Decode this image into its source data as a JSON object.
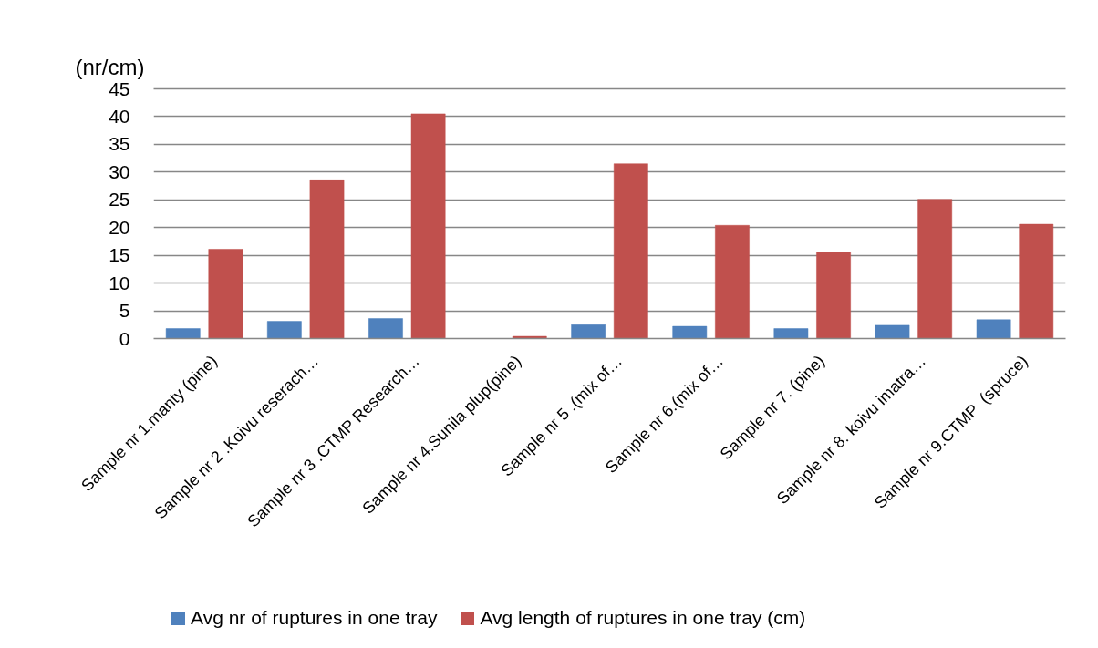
{
  "chart_data": {
    "type": "bar",
    "ylabel": "(nr/cm)",
    "categories": [
      "Sample nr 1.manty (pine)",
      "Sample nr 2 .Koivu reserach…",
      "Sample nr 3 .CTMP Research…",
      "Sample nr 4.Sunila plup(pine)",
      "Sample nr 5 .(mix of…",
      "Sample nr 6.(mix of…",
      "Sample nr 7. (pine)",
      "Sample nr 8. koivu imatra…",
      "Sample nr 9.CTMP  (spruce)"
    ],
    "series": [
      {
        "name": "Avg nr of ruptures in one tray",
        "color": "#4f81bd",
        "values": [
          1.8,
          3.1,
          3.6,
          0,
          2.5,
          2.2,
          1.8,
          2.4,
          3.4
        ]
      },
      {
        "name": "Avg length of ruptures in one tray (cm)",
        "color": "#c0504d",
        "values": [
          16.1,
          28.6,
          40.5,
          0.4,
          31.5,
          20.4,
          15.6,
          25.1,
          20.6
        ]
      }
    ],
    "ylim": [
      0,
      45
    ],
    "yticks": [
      0,
      5,
      10,
      15,
      20,
      25,
      30,
      35,
      40,
      45
    ],
    "grid": "y",
    "legend": "bottom"
  }
}
